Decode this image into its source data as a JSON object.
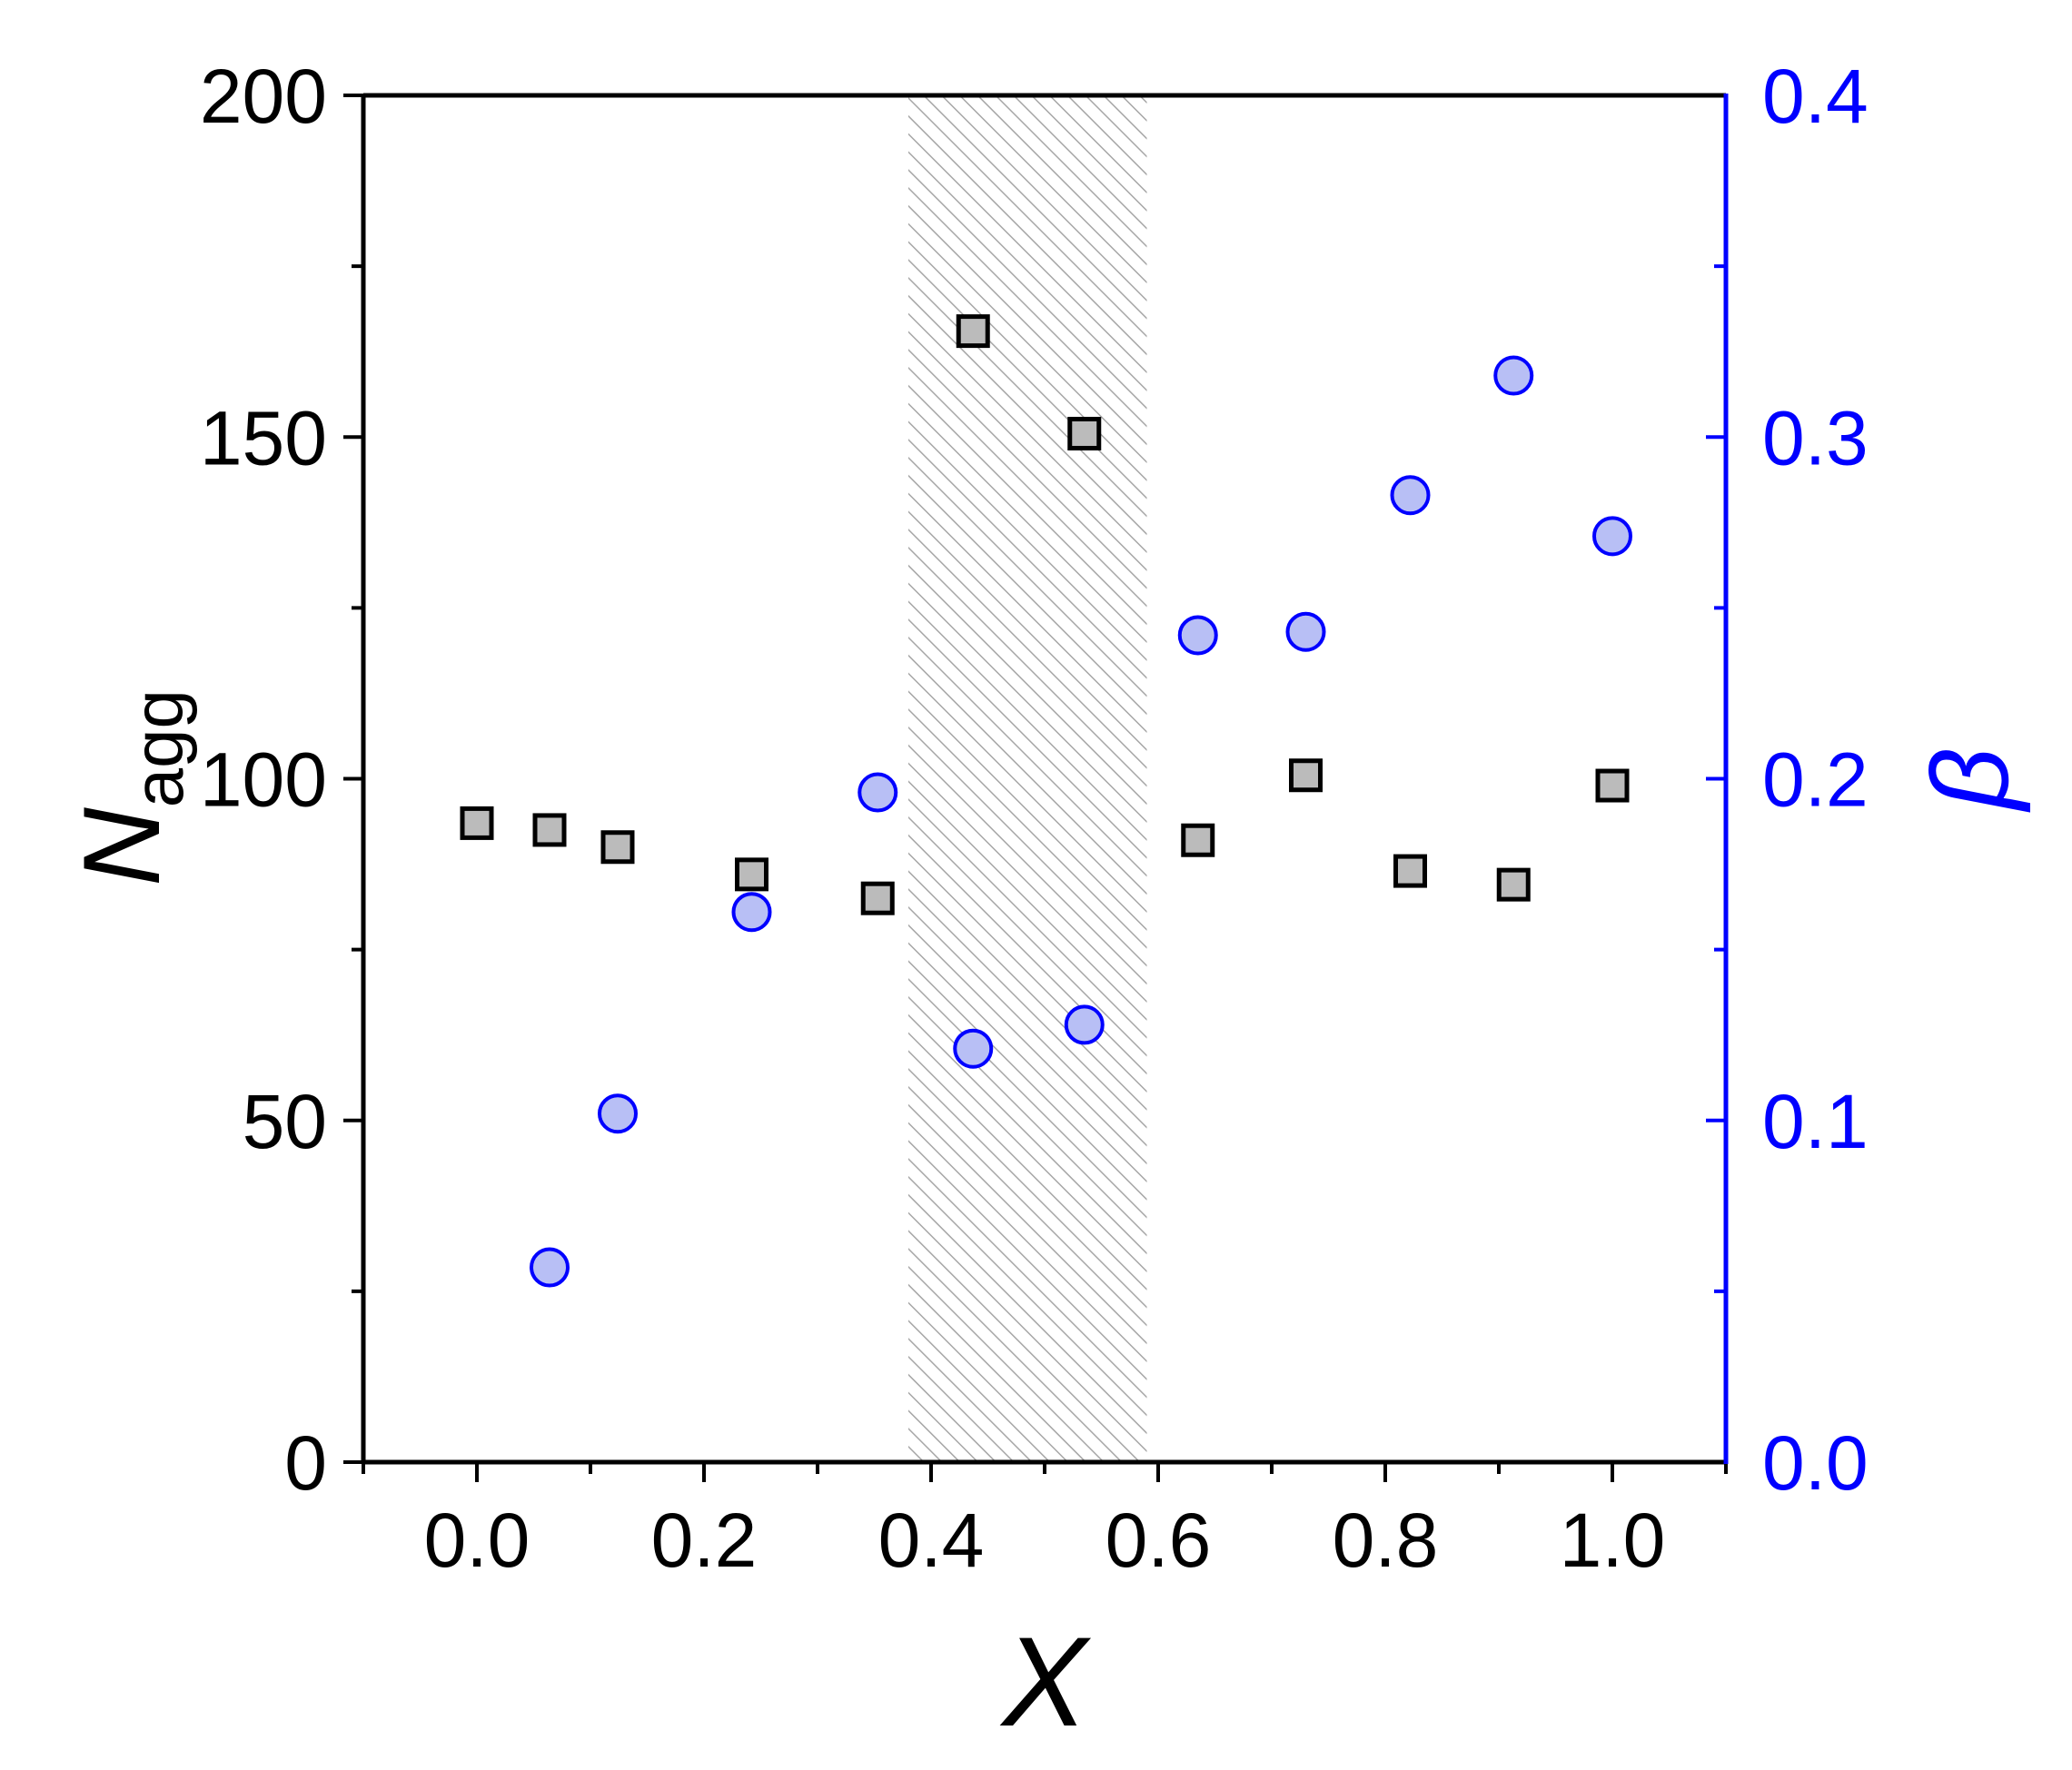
{
  "chart_data": {
    "type": "scatter",
    "xlabel": "X",
    "ylabel": {
      "main": "N",
      "sub": "agg"
    },
    "y2label": "β",
    "xlim": [
      -0.1,
      1.1
    ],
    "ylim": [
      0,
      200
    ],
    "y2lim": [
      0,
      0.4
    ],
    "xticks": [
      0.0,
      0.2,
      0.4,
      0.6,
      0.8,
      1.0
    ],
    "xtick_labels": [
      "0.0",
      "0.2",
      "0.4",
      "0.6",
      "0.8",
      "1.0"
    ],
    "yticks": [
      0,
      50,
      100,
      150,
      200
    ],
    "ytick_labels": [
      "0",
      "50",
      "100",
      "150",
      "200"
    ],
    "y2ticks": [
      0.0,
      0.1,
      0.2,
      0.3,
      0.4
    ],
    "y2tick_labels": [
      "0.0",
      "0.1",
      "0.2",
      "0.3",
      "0.4"
    ],
    "grid": false,
    "shaded_region": {
      "x": [
        0.38,
        0.59
      ],
      "style": "hatched"
    },
    "colors": {
      "axis": "#000000",
      "right_axis": "#0000ff",
      "square_fill": "#bbbbbb",
      "circle_fill": "#b8bff5",
      "hatch": "#a6a6a6"
    },
    "series": [
      {
        "axis": "left",
        "marker": "square",
        "x": [
          0.0,
          0.064,
          0.124,
          0.242,
          0.353,
          0.437,
          0.535,
          0.635,
          0.73,
          0.822,
          0.913,
          1.0
        ],
        "y": [
          93.5,
          92.5,
          90,
          86,
          82.5,
          165.5,
          150.5,
          91,
          100.5,
          86.5,
          84.5,
          99
        ]
      },
      {
        "axis": "right",
        "marker": "circle",
        "x": [
          0.064,
          0.124,
          0.242,
          0.353,
          0.437,
          0.535,
          0.635,
          0.73,
          0.822,
          0.913,
          1.0
        ],
        "y": [
          0.057,
          0.102,
          0.161,
          0.196,
          0.121,
          0.128,
          0.242,
          0.243,
          0.283,
          0.318,
          0.271
        ]
      }
    ]
  }
}
